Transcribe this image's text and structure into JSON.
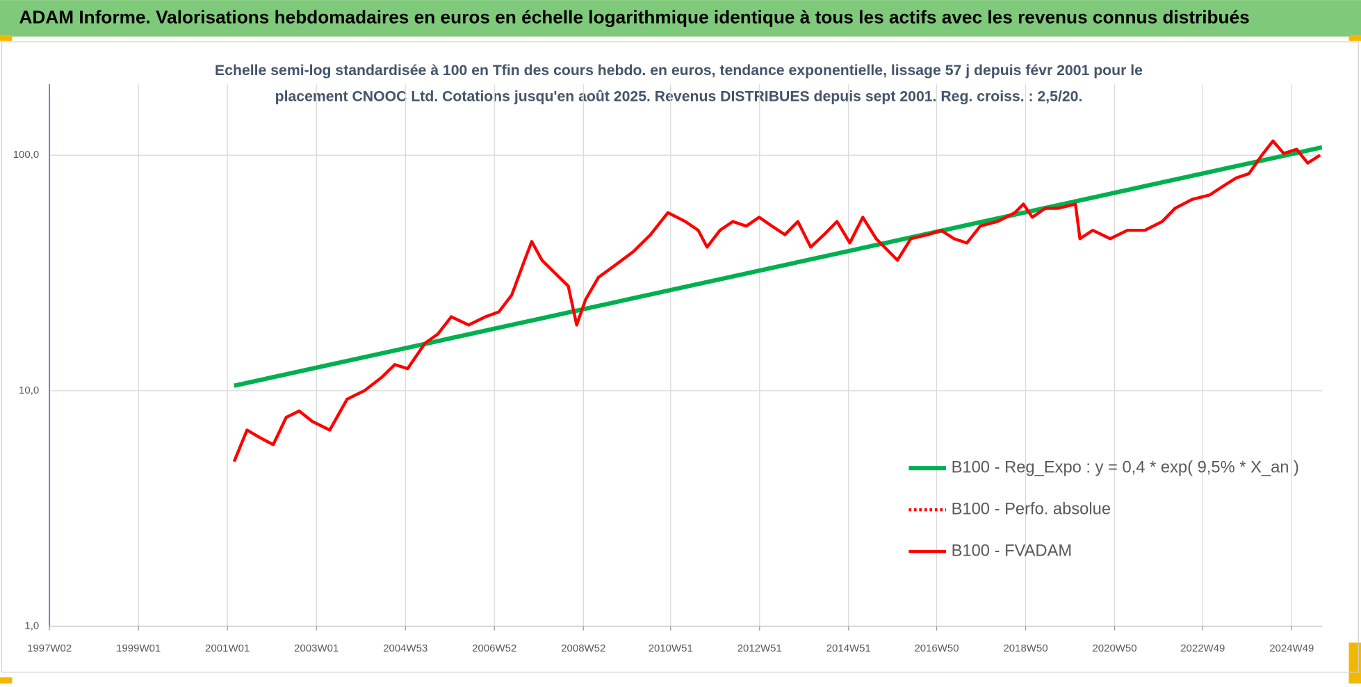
{
  "chart_data": {
    "type": "line",
    "title": "ADAM Informe. Valorisations hebdomadaires en euros en échelle logarithmique identique à tous les actifs avec les revenus connus distribués",
    "subtitle": [
      "Echelle semi-log standardisée à 100 en Tfin des cours hebdo. en euros, tendance exponentielle, lissage 57 j depuis févr 2001 pour le",
      "placement CNOOC Ltd. Cotations jusqu'en août 2025.  Revenus DISTRIBUES depuis sept 2001.  Reg. croiss. : 2,5/20."
    ],
    "log_scale_y": true,
    "grid": true,
    "legend_position": "lower right",
    "xlim": [
      1997.0,
      2025.6
    ],
    "xticks": [
      {
        "value": 1997.0,
        "label": "1997W02"
      },
      {
        "value": 1999.0,
        "label": "1999W01"
      },
      {
        "value": 2001.0,
        "label": "2001W01"
      },
      {
        "value": 2003.0,
        "label": "2003W01"
      },
      {
        "value": 2005.0,
        "label": "2004W53"
      },
      {
        "value": 2007.0,
        "label": "2006W52"
      },
      {
        "value": 2009.0,
        "label": "2008W52"
      },
      {
        "value": 2010.96,
        "label": "2010W51"
      },
      {
        "value": 2012.96,
        "label": "2012W51"
      },
      {
        "value": 2014.96,
        "label": "2014W51"
      },
      {
        "value": 2016.94,
        "label": "2016W50"
      },
      {
        "value": 2018.94,
        "label": "2018W50"
      },
      {
        "value": 2020.94,
        "label": "2020W50"
      },
      {
        "value": 2022.92,
        "label": "2022W49"
      },
      {
        "value": 2024.92,
        "label": "2024W49"
      }
    ],
    "ylim": [
      1,
      200
    ],
    "yticks": [
      {
        "value": 1,
        "label": "1,0"
      },
      {
        "value": 10,
        "label": "10,0"
      },
      {
        "value": 100,
        "label": "100,0"
      }
    ],
    "series": [
      {
        "name": "B100 - Reg_Expo : y = 0,4 * exp( 9,5% *  X_an )",
        "color": "#00b050",
        "style": "solid",
        "x": [
          2001.15,
          2025.6
        ],
        "values": [
          10.5,
          108
        ]
      },
      {
        "name": "B100 - Perfo. absolue",
        "color": "#ff0000",
        "style": "dotted",
        "x": [],
        "values": []
      },
      {
        "name": "B100 - FVADAM",
        "color": "#ff0000",
        "style": "solid",
        "x": [
          2001.15,
          2001.44,
          2001.74,
          2002.03,
          2002.32,
          2002.61,
          2002.91,
          2003.3,
          2003.69,
          2004.08,
          2004.47,
          2004.76,
          2005.05,
          2005.44,
          2005.73,
          2006.03,
          2006.42,
          2006.8,
          2007.1,
          2007.39,
          2007.68,
          2007.84,
          2008.07,
          2008.36,
          2008.66,
          2008.85,
          2009.05,
          2009.34,
          2009.73,
          2010.12,
          2010.51,
          2010.9,
          2011.29,
          2011.58,
          2011.78,
          2012.07,
          2012.36,
          2012.66,
          2012.95,
          2013.24,
          2013.53,
          2013.82,
          2014.11,
          2014.41,
          2014.7,
          2014.99,
          2015.28,
          2015.58,
          2015.87,
          2016.06,
          2016.36,
          2016.75,
          2017.04,
          2017.33,
          2017.62,
          2017.92,
          2018.31,
          2018.7,
          2018.89,
          2019.09,
          2019.38,
          2019.67,
          2020.06,
          2020.16,
          2020.45,
          2020.84,
          2021.23,
          2021.62,
          2022.01,
          2022.3,
          2022.69,
          2023.08,
          2023.37,
          2023.67,
          2023.96,
          2024.25,
          2024.5,
          2024.74,
          2025.03,
          2025.28,
          2025.56
        ],
        "values": [
          5.0,
          6.8,
          6.3,
          5.9,
          7.7,
          8.2,
          7.4,
          6.8,
          9.2,
          10.0,
          11.4,
          12.9,
          12.4,
          15.9,
          17.4,
          20.6,
          19.0,
          20.6,
          21.6,
          25.5,
          35.8,
          43.0,
          35.8,
          31.6,
          27.8,
          19.0,
          24.4,
          30.3,
          34.3,
          38.9,
          46.0,
          57.0,
          52.3,
          48.0,
          40.7,
          48.0,
          52.3,
          50.0,
          54.5,
          50.0,
          46.0,
          52.3,
          40.7,
          46.0,
          52.3,
          42.4,
          54.5,
          44.2,
          38.9,
          35.8,
          44.2,
          46.0,
          48.0,
          44.2,
          42.4,
          50.0,
          52.3,
          57.0,
          62.0,
          54.5,
          59.5,
          59.5,
          62.0,
          44.2,
          48.0,
          44.2,
          48.0,
          48.0,
          52.3,
          59.5,
          65.0,
          67.8,
          73.7,
          80.0,
          83.5,
          100.0,
          115.0,
          101.7,
          106.0,
          92.6,
          100.0
        ]
      }
    ]
  }
}
